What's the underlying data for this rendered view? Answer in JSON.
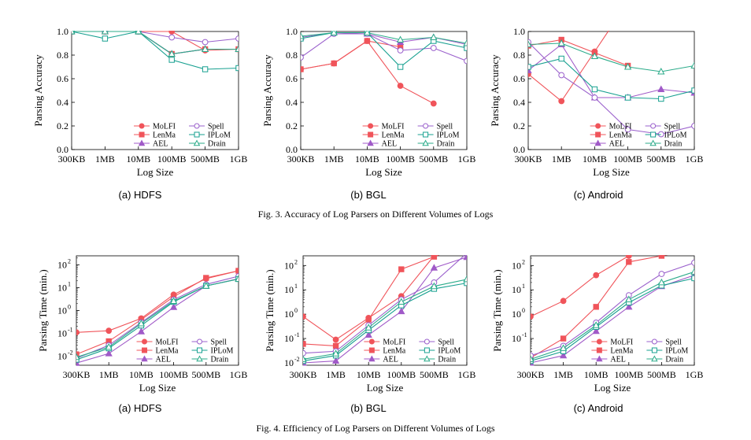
{
  "colors": {
    "molfi": "#f0545a",
    "lenma": "#f0545a",
    "aell": "#a05ac8",
    "spell": "#9a60cc",
    "iplom": "#17a090",
    "drain": "#2bab8a"
  },
  "legend_labels": [
    "MoLFI",
    "Spell",
    "LenMa",
    "IPLoM",
    "AEL",
    "Drain"
  ],
  "captions": {
    "fig3": "Fig. 3.  Accuracy of Log Parsers on Different Volumes of Logs",
    "fig4": "Fig. 4.  Efficiency of Log Parsers on Different Volumes of Logs"
  },
  "subcaptions": [
    "(a) HDFS",
    "(b) BGL",
    "(c) Android",
    "(a) HDFS",
    "(b) BGL",
    "(c) Android"
  ],
  "chart_data": [
    {
      "type": "line",
      "title": "(a) HDFS",
      "xlabel": "Log Size",
      "ylabel": "Parsing Accuracy",
      "scale": "linear",
      "ylim": [
        0,
        1
      ],
      "yticks": [
        "0.0",
        "0.2",
        "0.4",
        "0.6",
        "0.8",
        "1.0"
      ],
      "categories": [
        "300KB",
        "1MB",
        "10MB",
        "100MB",
        "500MB",
        "1GB"
      ],
      "series": [
        {
          "name": "MoLFI",
          "values": [
            1.0,
            1.0,
            1.0,
            1.0,
            0.84,
            0.85
          ]
        },
        {
          "name": "LenMa",
          "values": [
            1.0,
            1.0,
            1.0,
            0.81,
            0.85,
            0.85
          ]
        },
        {
          "name": "AEL",
          "values": [
            1.0,
            1.0,
            1.0,
            0.81,
            0.85,
            0.85
          ]
        },
        {
          "name": "Spell",
          "values": [
            1.0,
            1.0,
            1.0,
            0.95,
            0.91,
            0.94
          ]
        },
        {
          "name": "IPLoM",
          "values": [
            1.0,
            0.94,
            1.0,
            0.76,
            0.68,
            0.69
          ]
        },
        {
          "name": "Drain",
          "values": [
            1.0,
            1.0,
            1.0,
            0.81,
            0.85,
            0.85
          ]
        }
      ]
    },
    {
      "type": "line",
      "title": "(b) BGL",
      "xlabel": "Log Size",
      "ylabel": "Parsing Accuracy",
      "scale": "linear",
      "ylim": [
        0,
        1
      ],
      "yticks": [
        "0.0",
        "0.2",
        "0.4",
        "0.6",
        "0.8",
        "1.0"
      ],
      "categories": [
        "300KB",
        "1MB",
        "10MB",
        "100MB",
        "500MB",
        "1GB"
      ],
      "series": [
        {
          "name": "MoLFI",
          "values": [
            0.68,
            0.73,
            0.92,
            0.54,
            0.39,
            null
          ]
        },
        {
          "name": "LenMa",
          "values": [
            0.68,
            0.73,
            0.92,
            0.87,
            null,
            null
          ]
        },
        {
          "name": "AEL",
          "values": [
            0.95,
            0.99,
            0.98,
            0.91,
            0.95,
            0.89
          ]
        },
        {
          "name": "Spell",
          "values": [
            0.78,
            0.98,
            0.98,
            0.84,
            0.86,
            0.75
          ]
        },
        {
          "name": "IPLoM",
          "values": [
            0.94,
            0.99,
            0.99,
            0.7,
            0.92,
            0.86
          ]
        },
        {
          "name": "Drain",
          "values": [
            0.96,
            0.99,
            0.99,
            0.93,
            0.95,
            0.9
          ]
        }
      ]
    },
    {
      "type": "line",
      "title": "(c) Android",
      "xlabel": "Log Size",
      "ylabel": "Parsing Accuracy",
      "scale": "linear",
      "ylim": [
        0,
        1
      ],
      "yticks": [
        "0.0",
        "0.2",
        "0.4",
        "0.6",
        "0.8",
        "1.0"
      ],
      "categories": [
        "300KB",
        "1MB",
        "10MB",
        "100MB",
        "500MB",
        "1GB"
      ],
      "series": [
        {
          "name": "MoLFI",
          "values": [
            0.64,
            0.41,
            0.83,
            null,
            null,
            null
          ]
        },
        {
          "name": "LenMa",
          "values": [
            0.88,
            0.93,
            0.82,
            0.71,
            null,
            null
          ]
        },
        {
          "name": "AEL",
          "values": [
            0.67,
            0.89,
            0.44,
            0.44,
            0.51,
            0.48
          ]
        },
        {
          "name": "Spell",
          "values": [
            0.91,
            0.63,
            0.44,
            0.17,
            0.13,
            0.2
          ]
        },
        {
          "name": "IPLoM",
          "values": [
            0.7,
            0.77,
            0.51,
            0.44,
            0.43,
            0.5
          ]
        },
        {
          "name": "Drain",
          "values": [
            0.89,
            0.9,
            0.79,
            0.7,
            0.66,
            0.71
          ]
        }
      ]
    },
    {
      "type": "line",
      "title": "(a) HDFS",
      "xlabel": "Log Size",
      "ylabel": "Parsing Time (min.)",
      "scale": "log",
      "ylim": [
        0.004,
        250
      ],
      "yticks": [
        "10^-2",
        "10^-1",
        "10^0",
        "10^1",
        "10^2"
      ],
      "categories": [
        "300KB",
        "1MB",
        "10MB",
        "100MB",
        "500MB",
        "1GB"
      ],
      "series": [
        {
          "name": "MoLFI",
          "values": [
            0.11,
            0.13,
            0.45,
            5.0,
            25,
            55
          ]
        },
        {
          "name": "LenMa",
          "values": [
            0.012,
            0.045,
            0.4,
            4.0,
            27,
            55
          ]
        },
        {
          "name": "AEL",
          "values": [
            0.005,
            0.013,
            0.12,
            1.4,
            12,
            25
          ]
        },
        {
          "name": "Spell",
          "values": [
            0.008,
            0.03,
            0.3,
            3.0,
            14,
            32
          ]
        },
        {
          "name": "IPLoM",
          "values": [
            0.007,
            0.022,
            0.22,
            2.4,
            12,
            24
          ]
        },
        {
          "name": "Drain",
          "values": [
            0.009,
            0.025,
            0.27,
            2.6,
            12,
            24
          ]
        }
      ]
    },
    {
      "type": "line",
      "title": "(b) BGL",
      "xlabel": "Log Size",
      "ylabel": "Parsing Time (min.)",
      "scale": "log",
      "ylim": [
        0.008,
        250
      ],
      "yticks": [
        "10^-2",
        "10^-1",
        "10^0",
        "10^1",
        "10^2"
      ],
      "categories": [
        "300KB",
        "1MB",
        "10MB",
        "100MB",
        "500MB",
        "1GB"
      ],
      "series": [
        {
          "name": "MoLFI",
          "values": [
            0.8,
            0.09,
            0.7,
            5.5,
            250,
            null
          ]
        },
        {
          "name": "LenMa",
          "values": [
            0.06,
            0.05,
            0.6,
            70,
            230,
            null
          ]
        },
        {
          "name": "AEL",
          "values": [
            0.01,
            0.012,
            0.14,
            1.3,
            80,
            220
          ]
        },
        {
          "name": "Spell",
          "values": [
            0.025,
            0.03,
            0.35,
            4.0,
            20,
            320
          ]
        },
        {
          "name": "IPLoM",
          "values": [
            0.012,
            0.02,
            0.22,
            2.3,
            11,
            19
          ]
        },
        {
          "name": "Drain",
          "values": [
            0.014,
            0.024,
            0.28,
            3.2,
            14,
            27
          ]
        }
      ]
    },
    {
      "type": "line",
      "title": "(c) Android",
      "xlabel": "Log Size",
      "ylabel": "Parsing Time (min.)",
      "scale": "log",
      "ylim": [
        0.008,
        250
      ],
      "yticks": [
        "10^-1",
        "10^0",
        "10^1",
        "10^2"
      ],
      "categories": [
        "300KB",
        "1MB",
        "10MB",
        "100MB",
        "500MB",
        "1GB"
      ],
      "series": [
        {
          "name": "MoLFI",
          "values": [
            0.8,
            3.5,
            40,
            250,
            null,
            null
          ]
        },
        {
          "name": "LenMa",
          "values": [
            0.016,
            0.1,
            2.0,
            140,
            250,
            null
          ]
        },
        {
          "name": "AEL",
          "values": [
            0.01,
            0.02,
            0.2,
            2.0,
            14,
            40
          ]
        },
        {
          "name": "Spell",
          "values": [
            0.02,
            0.05,
            0.45,
            6.0,
            45,
            130
          ]
        },
        {
          "name": "IPLoM",
          "values": [
            0.012,
            0.03,
            0.3,
            3.0,
            15,
            30
          ]
        },
        {
          "name": "Drain",
          "values": [
            0.014,
            0.04,
            0.35,
            4.0,
            20,
            55
          ]
        }
      ]
    }
  ]
}
